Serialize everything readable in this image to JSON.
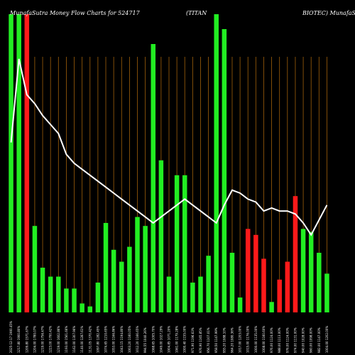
{
  "title": {
    "left": "MunafaSutra  Money Flow  Charts for 524717",
    "middle": "(TITAN",
    "right": "BIOTEC) MunafaSutra.com"
  },
  "colors": {
    "background": "#000000",
    "up": "#22ee22",
    "down": "#ff1a1a",
    "gridline": "#a0600a",
    "line": "#ffffff"
  },
  "chart_data": {
    "type": "bar",
    "categories": [
      "2025-12-17 1900.45%",
      "1217.80 1900.80%",
      "1209.80 1571.67%",
      "1204.00 1780.07%",
      "1219.00 1756.47%",
      "1223.00 1700.42%",
      "1219.00 1602.86%",
      "1193.00 1561.66%",
      "1162.00 1307.96%",
      "1140.00 1287.61%",
      "1131.05 1370.42%",
      "1097.80 1282.45%",
      "1074.65 1210.65%",
      "1053.00 1166.86%",
      "1043.15 1194.80%",
      "1003.20 1160.05%",
      "1012.20 1166.65%",
      "994.55 1040.26%",
      "1068.65 1005.70%",
      "1049.00 1027.29%",
      "1004.85 1071.20%",
      "1061.00 1179.28%",
      "1000.40 1155.00%",
      "971.90 1196.63%",
      "976.90 1165.85%",
      "956.70 1107.01%",
      "958.50 1147.99%",
      "955.20 1088.10%",
      "964.20 1080.36%",
      "1017.00 1203.00%",
      "1015.00 1176.00%",
      "1000.00 1135.00%",
      "1008.00 1160.60%",
      "976.00 1124.00%",
      "988.00 1113.00%",
      "976.00 1124.00%",
      "974.00 1131.00%",
      "940.00 1028.00%",
      "960.00 1098.00%",
      "982.00 1147.00%",
      "1004.00 1202.00%"
    ],
    "values": [
      100,
      100,
      100,
      29,
      15,
      12,
      12,
      8,
      8,
      3,
      2,
      10,
      30,
      21,
      17,
      22,
      32,
      29,
      90,
      51,
      12,
      46,
      46,
      10,
      12,
      19,
      100,
      95,
      20,
      5,
      28,
      26,
      18,
      3.5,
      11,
      17,
      39,
      28,
      27,
      20,
      13
    ],
    "directions": [
      "up",
      "up",
      "down",
      "up",
      "up",
      "up",
      "up",
      "up",
      "up",
      "up",
      "up",
      "up",
      "up",
      "up",
      "up",
      "up",
      "up",
      "up",
      "up",
      "up",
      "up",
      "up",
      "up",
      "up",
      "up",
      "up",
      "up",
      "up",
      "up",
      "up",
      "down",
      "down",
      "down",
      "up",
      "down",
      "down",
      "down",
      "up",
      "up",
      "up",
      "up"
    ],
    "line": [
      57,
      85,
      73,
      70,
      66,
      63,
      60,
      53,
      50,
      48,
      46,
      44,
      42,
      40,
      38,
      36,
      34,
      32,
      30,
      32,
      34,
      36,
      38,
      36,
      34,
      32,
      30,
      36,
      41,
      40,
      38,
      37,
      34,
      35,
      34,
      34,
      33,
      30,
      26,
      31,
      36
    ],
    "ylim": [
      0,
      100
    ],
    "grid": true
  }
}
